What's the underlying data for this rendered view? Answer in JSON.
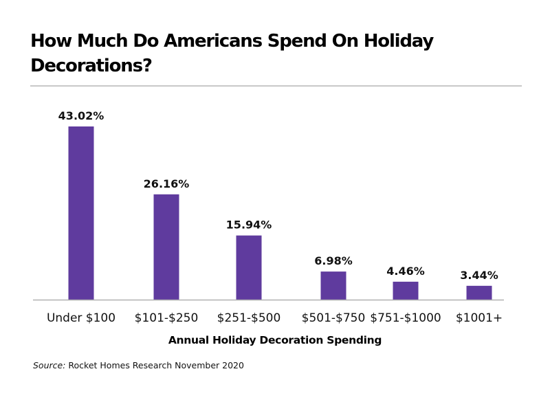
{
  "chart_data": {
    "type": "bar",
    "title": "How Much Do Americans Spend On Holiday Decorations?",
    "xlabel": "Annual Holiday Decoration Spending",
    "ylabel": "",
    "categories": [
      "Under $100",
      "$101-$250",
      "$251-$500",
      "$501-$750",
      "$751-$1000",
      "$1001+"
    ],
    "values": [
      43.02,
      26.16,
      15.94,
      6.98,
      4.46,
      3.44
    ],
    "value_labels": [
      "43.02%",
      "26.16%",
      "15.94%",
      "6.98%",
      "4.46%",
      "3.44%"
    ],
    "unit": "%",
    "ylim": [
      0,
      45
    ],
    "grid": false,
    "legend": "none",
    "bar_color": "#5f3b9e",
    "axis_color": "#b0b0b0"
  },
  "source": {
    "label": "Source:",
    "text": "Rocket Homes Research November 2020"
  }
}
